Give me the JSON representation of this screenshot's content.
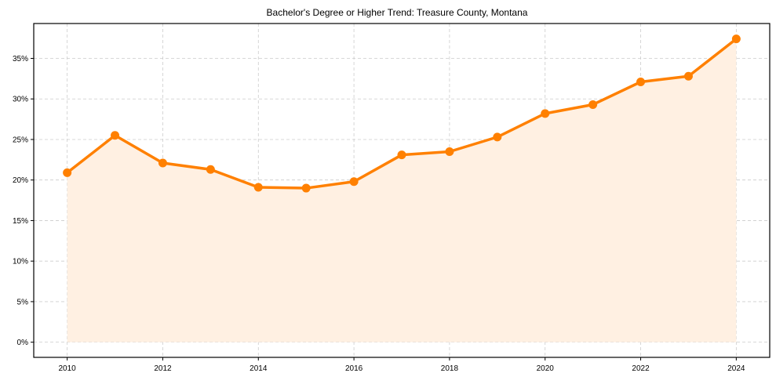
{
  "chart_data": {
    "type": "line",
    "title": "Bachelor's Degree or Higher Trend: Treasure County, Montana",
    "xlabel": "",
    "ylabel": "",
    "x": [
      2010,
      2011,
      2012,
      2013,
      2014,
      2015,
      2016,
      2017,
      2018,
      2019,
      2020,
      2021,
      2022,
      2023,
      2024
    ],
    "series": [
      {
        "name": "Bachelor's Degree or Higher",
        "values": [
          20.9,
          25.5,
          22.1,
          21.3,
          19.1,
          19.0,
          19.8,
          23.1,
          23.5,
          25.3,
          28.2,
          29.3,
          32.1,
          32.8,
          37.4
        ],
        "color": "#ff8000",
        "fill_color": "#fff0e2"
      }
    ],
    "xticks": [
      2010,
      2012,
      2014,
      2016,
      2018,
      2020,
      2022,
      2024
    ],
    "yticks": [
      0,
      5,
      10,
      15,
      20,
      25,
      30,
      35
    ],
    "ytick_labels": [
      "0%",
      "5%",
      "10%",
      "15%",
      "20%",
      "25%",
      "30%",
      "35%"
    ],
    "xlim": [
      2009.3,
      2024.7
    ],
    "ylim": [
      -1.87,
      39.3
    ],
    "grid": true,
    "legend": "none"
  }
}
